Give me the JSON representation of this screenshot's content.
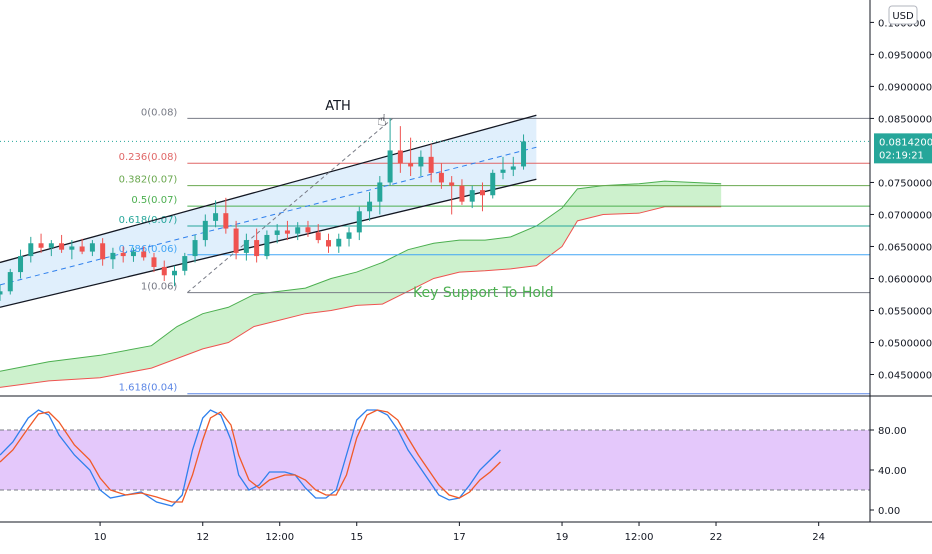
{
  "currency_badge": "USD",
  "chart_data": [
    {
      "type": "candlestick",
      "panel": "price",
      "y_ticks": [
        "0.10000000",
        "0.09500000",
        "0.09000000",
        "0.08500000",
        "0.07500000",
        "0.07000000",
        "0.06500000",
        "0.06000000",
        "0.05500000",
        "0.05000000",
        "0.04500000"
      ],
      "y_tick_display": [
        "0.1​00000",
        "0.09500000",
        "0.09000000",
        "0.08500000",
        "0.07500000",
        "0.07000000",
        "0.06500000",
        "0.06000000",
        "0.05500000",
        "0.05000000",
        "0.04500000"
      ],
      "ylim": [
        0.0418,
        0.1035
      ],
      "x_ticks": [
        {
          "label": "10",
          "t": 9.0
        },
        {
          "label": "12",
          "t": 11.0
        },
        {
          "label": "12:00",
          "t": 12.5
        },
        {
          "label": "15",
          "t": 14.0
        },
        {
          "label": "17",
          "t": 16.0
        },
        {
          "label": "19",
          "t": 18.0
        },
        {
          "label": "12:00",
          "t": 19.5
        },
        {
          "label": "22",
          "t": 21.0
        },
        {
          "label": "24",
          "t": 23.0
        }
      ],
      "xlim": [
        7.05,
        24.0
      ],
      "current_price": {
        "value": 0.08142,
        "label": "0.08142000",
        "countdown": "02:19:21",
        "color": "#26a69a"
      },
      "candles": [
        [
          7.05,
          0.0575,
          0.059,
          0.0565,
          0.058
        ],
        [
          7.25,
          0.058,
          0.0615,
          0.0575,
          0.061
        ],
        [
          7.45,
          0.061,
          0.0645,
          0.06,
          0.0635
        ],
        [
          7.65,
          0.0635,
          0.0665,
          0.0625,
          0.0655
        ],
        [
          7.85,
          0.0655,
          0.067,
          0.064,
          0.0648
        ],
        [
          8.05,
          0.0648,
          0.066,
          0.0635,
          0.0655
        ],
        [
          8.25,
          0.0655,
          0.0668,
          0.064,
          0.0645
        ],
        [
          8.45,
          0.0645,
          0.066,
          0.063,
          0.065
        ],
        [
          8.65,
          0.065,
          0.0662,
          0.0638,
          0.0642
        ],
        [
          8.85,
          0.0642,
          0.066,
          0.0635,
          0.0655
        ],
        [
          9.05,
          0.0655,
          0.0663,
          0.062,
          0.063
        ],
        [
          9.25,
          0.063,
          0.0648,
          0.0615,
          0.064
        ],
        [
          9.45,
          0.064,
          0.065,
          0.0625,
          0.0635
        ],
        [
          9.65,
          0.0635,
          0.0648,
          0.0626,
          0.0642
        ],
        [
          9.85,
          0.0642,
          0.065,
          0.0628,
          0.0633
        ],
        [
          10.05,
          0.0633,
          0.064,
          0.061,
          0.0618
        ],
        [
          10.25,
          0.0618,
          0.0628,
          0.0596,
          0.0605
        ],
        [
          10.45,
          0.0605,
          0.062,
          0.0588,
          0.0612
        ],
        [
          10.65,
          0.0612,
          0.064,
          0.0605,
          0.0635
        ],
        [
          10.85,
          0.0635,
          0.0668,
          0.0625,
          0.066
        ],
        [
          11.05,
          0.066,
          0.07,
          0.065,
          0.069
        ],
        [
          11.25,
          0.069,
          0.0722,
          0.068,
          0.0702
        ],
        [
          11.45,
          0.0702,
          0.0726,
          0.067,
          0.0678
        ],
        [
          11.65,
          0.0678,
          0.069,
          0.063,
          0.064
        ],
        [
          11.85,
          0.064,
          0.067,
          0.0628,
          0.066
        ],
        [
          12.05,
          0.066,
          0.0678,
          0.0625,
          0.0635
        ],
        [
          12.25,
          0.0635,
          0.0675,
          0.063,
          0.0668
        ],
        [
          12.45,
          0.0668,
          0.0685,
          0.0655,
          0.0675
        ],
        [
          12.65,
          0.0675,
          0.069,
          0.066,
          0.067
        ],
        [
          12.85,
          0.067,
          0.0688,
          0.066,
          0.068
        ],
        [
          13.05,
          0.068,
          0.069,
          0.0665,
          0.0672
        ],
        [
          13.25,
          0.0672,
          0.0685,
          0.0655,
          0.066
        ],
        [
          13.45,
          0.066,
          0.067,
          0.064,
          0.065
        ],
        [
          13.65,
          0.065,
          0.067,
          0.064,
          0.0662
        ],
        [
          13.85,
          0.0662,
          0.068,
          0.065,
          0.0672
        ],
        [
          14.05,
          0.0672,
          0.0712,
          0.066,
          0.0705
        ],
        [
          14.25,
          0.0705,
          0.0735,
          0.069,
          0.072
        ],
        [
          14.45,
          0.072,
          0.076,
          0.07,
          0.075
        ],
        [
          14.65,
          0.075,
          0.085,
          0.0745,
          0.08
        ],
        [
          14.85,
          0.08,
          0.0838,
          0.0765,
          0.078
        ],
        [
          15.05,
          0.078,
          0.082,
          0.076,
          0.0775
        ],
        [
          15.25,
          0.0775,
          0.08,
          0.076,
          0.079
        ],
        [
          15.45,
          0.079,
          0.081,
          0.075,
          0.0765
        ],
        [
          15.65,
          0.0765,
          0.078,
          0.074,
          0.075
        ],
        [
          15.85,
          0.075,
          0.076,
          0.07,
          0.0745
        ],
        [
          16.05,
          0.0745,
          0.0755,
          0.0715,
          0.072
        ],
        [
          16.25,
          0.072,
          0.0745,
          0.071,
          0.0738
        ],
        [
          16.45,
          0.0738,
          0.075,
          0.0705,
          0.073
        ],
        [
          16.65,
          0.073,
          0.077,
          0.0725,
          0.0765
        ],
        [
          16.85,
          0.0765,
          0.079,
          0.0755,
          0.077
        ],
        [
          17.05,
          0.077,
          0.079,
          0.076,
          0.0775
        ],
        [
          17.25,
          0.0775,
          0.0825,
          0.077,
          0.0814
        ]
      ],
      "ichimoku_cloud": [
        [
          7.05,
          0.0455,
          0.043
        ],
        [
          8.0,
          0.047,
          0.044
        ],
        [
          9.0,
          0.048,
          0.0445
        ],
        [
          10.0,
          0.0495,
          0.046
        ],
        [
          10.5,
          0.0525,
          0.0475
        ],
        [
          11.0,
          0.0545,
          0.049
        ],
        [
          11.5,
          0.0555,
          0.05
        ],
        [
          12.0,
          0.0575,
          0.0525
        ],
        [
          12.5,
          0.058,
          0.0535
        ],
        [
          13.0,
          0.0585,
          0.0545
        ],
        [
          13.5,
          0.06,
          0.055
        ],
        [
          14.0,
          0.061,
          0.0558
        ],
        [
          14.5,
          0.0625,
          0.056
        ],
        [
          15.0,
          0.0645,
          0.058
        ],
        [
          15.5,
          0.0655,
          0.06
        ],
        [
          16.0,
          0.066,
          0.061
        ],
        [
          16.5,
          0.066,
          0.0612
        ],
        [
          17.0,
          0.0665,
          0.0615
        ],
        [
          17.5,
          0.0682,
          0.062
        ],
        [
          18.0,
          0.071,
          0.065
        ],
        [
          18.3,
          0.074,
          0.069
        ],
        [
          18.8,
          0.0745,
          0.07
        ],
        [
          19.5,
          0.0748,
          0.0702
        ],
        [
          20.0,
          0.0752,
          0.0712
        ],
        [
          21.1,
          0.0748,
          0.0712
        ]
      ],
      "fibonacci": [
        {
          "ratio": "0",
          "label": "0(0.08)",
          "value": 0.085,
          "color": "#787b86"
        },
        {
          "ratio": "0.236",
          "label": "0.236(0.08)",
          "value": 0.078,
          "color": "#e06666"
        },
        {
          "ratio": "0.382",
          "label": "0.382(0.07)",
          "value": 0.0745,
          "color": "#6aa84f"
        },
        {
          "ratio": "0.5",
          "label": "0.5(0.07)",
          "value": 0.0713,
          "color": "#4caf50"
        },
        {
          "ratio": "0.618",
          "label": "0.618(0.07)",
          "value": 0.0682,
          "color": "#26a69a"
        },
        {
          "ratio": "0.786",
          "label": "0.786(0.06)",
          "value": 0.0637,
          "color": "#42a5f5"
        },
        {
          "ratio": "1",
          "label": "1(0.06)",
          "value": 0.0578,
          "color": "#787b86"
        },
        {
          "ratio": "1.618",
          "label": "1.618(0.04)",
          "value": 0.042,
          "color": "#5b86e5"
        }
      ],
      "fib_range": [
        10.7,
        21.1
      ],
      "channel": {
        "upper": [
          [
            7.05,
            0.0625
          ],
          [
            17.5,
            0.0855
          ]
        ],
        "lower": [
          [
            7.05,
            0.0555
          ],
          [
            17.5,
            0.0755
          ]
        ],
        "mid": [
          [
            7.05,
            0.059
          ],
          [
            17.5,
            0.0805
          ]
        ]
      },
      "annotations": {
        "ath": "ATH",
        "key_support": "Key Support To Hold"
      },
      "colors": {
        "up": "#26a69a",
        "down": "#ef5350",
        "cloud": "#c8f0c8",
        "channel": "#d6e9fb",
        "lagging": "#ef5350"
      }
    },
    {
      "type": "line",
      "panel": "oscillator",
      "y_ticks": [
        "80.00",
        "40.00",
        "0.00"
      ],
      "ylim": [
        -12,
        112
      ],
      "bands": {
        "upper": 80,
        "lower": 20,
        "fill": "#e4c8fb"
      },
      "series": [
        {
          "color": "#2f80ed",
          "points": [
            [
              7.05,
              55
            ],
            [
              7.3,
              68
            ],
            [
              7.6,
              92
            ],
            [
              7.8,
              100
            ],
            [
              8.0,
              95
            ],
            [
              8.2,
              75
            ],
            [
              8.5,
              55
            ],
            [
              8.8,
              40
            ],
            [
              9.0,
              20
            ],
            [
              9.2,
              12
            ],
            [
              9.5,
              15
            ],
            [
              9.8,
              18
            ],
            [
              10.1,
              8
            ],
            [
              10.4,
              4
            ],
            [
              10.6,
              15
            ],
            [
              10.8,
              60
            ],
            [
              11.0,
              92
            ],
            [
              11.15,
              100
            ],
            [
              11.35,
              95
            ],
            [
              11.55,
              70
            ],
            [
              11.7,
              35
            ],
            [
              11.9,
              20
            ],
            [
              12.1,
              25
            ],
            [
              12.3,
              38
            ],
            [
              12.6,
              38
            ],
            [
              12.8,
              35
            ],
            [
              13.0,
              22
            ],
            [
              13.2,
              12
            ],
            [
              13.4,
              12
            ],
            [
              13.6,
              20
            ],
            [
              13.8,
              55
            ],
            [
              14.0,
              90
            ],
            [
              14.2,
              100
            ],
            [
              14.4,
              100
            ],
            [
              14.6,
              95
            ],
            [
              14.8,
              80
            ],
            [
              15.0,
              60
            ],
            [
              15.2,
              45
            ],
            [
              15.4,
              30
            ],
            [
              15.6,
              15
            ],
            [
              15.8,
              10
            ],
            [
              16.0,
              12
            ],
            [
              16.2,
              25
            ],
            [
              16.4,
              40
            ],
            [
              16.6,
              50
            ],
            [
              16.8,
              60
            ]
          ]
        },
        {
          "color": "#f05a28",
          "points": [
            [
              7.05,
              48
            ],
            [
              7.3,
              60
            ],
            [
              7.6,
              82
            ],
            [
              7.8,
              96
            ],
            [
              8.0,
              98
            ],
            [
              8.2,
              88
            ],
            [
              8.5,
              65
            ],
            [
              8.8,
              50
            ],
            [
              9.0,
              32
            ],
            [
              9.2,
              20
            ],
            [
              9.5,
              15
            ],
            [
              9.8,
              17
            ],
            [
              10.1,
              13
            ],
            [
              10.4,
              8
            ],
            [
              10.6,
              8
            ],
            [
              10.8,
              35
            ],
            [
              11.0,
              70
            ],
            [
              11.15,
              92
            ],
            [
              11.35,
              98
            ],
            [
              11.55,
              85
            ],
            [
              11.7,
              55
            ],
            [
              11.9,
              30
            ],
            [
              12.1,
              22
            ],
            [
              12.3,
              30
            ],
            [
              12.6,
              35
            ],
            [
              12.8,
              35
            ],
            [
              13.0,
              30
            ],
            [
              13.2,
              20
            ],
            [
              13.4,
              15
            ],
            [
              13.6,
              15
            ],
            [
              13.8,
              35
            ],
            [
              14.0,
              72
            ],
            [
              14.2,
              95
            ],
            [
              14.4,
              100
            ],
            [
              14.6,
              98
            ],
            [
              14.8,
              90
            ],
            [
              15.0,
              72
            ],
            [
              15.2,
              55
            ],
            [
              15.4,
              40
            ],
            [
              15.6,
              25
            ],
            [
              15.8,
              15
            ],
            [
              16.0,
              12
            ],
            [
              16.2,
              18
            ],
            [
              16.4,
              30
            ],
            [
              16.6,
              38
            ],
            [
              16.8,
              48
            ]
          ]
        }
      ]
    }
  ]
}
